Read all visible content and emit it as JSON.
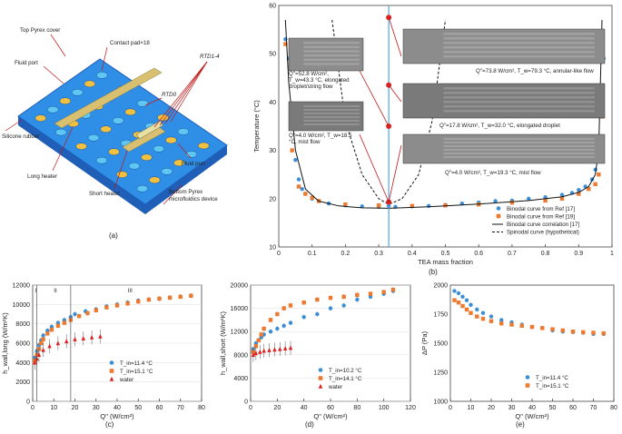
{
  "diagram": {
    "labels": {
      "top_cover": "Top Pyrex cover",
      "contact_pad": "Contact pad×18",
      "fluid_port_top": "Fluid port",
      "rtd0": "RTD0",
      "rtd14": "RTD1-4",
      "silicone": "Silicone rubber",
      "long_heater": "Long heater",
      "short_heater": "Short heater",
      "fluid_port_bottom": "Fluid port",
      "bottom_cover": "Bottom Pyrex",
      "device": "microfluidics device"
    },
    "colors": {
      "top": "#2f8fe6",
      "side": "#1f5fb8",
      "pad": "#f0c040",
      "hole": "#5ec6f2",
      "heater": "#d8c070"
    }
  },
  "panel_labels": {
    "a": "(a)",
    "b": "(b)",
    "c": "(c)",
    "d": "(d)",
    "e": "(e)"
  },
  "chart_data": [
    {
      "id": "b",
      "type": "scatter",
      "xlabel": "TEA mass fraction",
      "ylabel": "Temperature (°C)",
      "xlim": [
        0,
        1
      ],
      "ylim": [
        10,
        60
      ],
      "xticks": [
        0,
        0.1,
        0.2,
        0.3,
        0.4,
        0.5,
        0.6,
        0.7,
        0.8,
        0.9,
        1
      ],
      "xtick_labels": [
        "0",
        "0.1",
        "0.2",
        "0.3",
        "0.4",
        "0.5",
        "0.6",
        "0.7",
        "0.8",
        "0.9",
        "1"
      ],
      "yticks": [
        10,
        20,
        30,
        40,
        50,
        60
      ],
      "vline_x": 0.33,
      "series": [
        {
          "name": "Binodal curve from Ref [17]",
          "marker": "circle",
          "color": "#3a8fd6",
          "x": [
            0.02,
            0.03,
            0.04,
            0.05,
            0.06,
            0.07,
            0.08,
            0.1,
            0.12,
            0.15,
            0.2,
            0.25,
            0.3,
            0.33,
            0.35,
            0.4,
            0.45,
            0.5,
            0.55,
            0.6,
            0.65,
            0.7,
            0.75,
            0.8,
            0.85,
            0.88,
            0.9,
            0.92,
            0.94,
            0.95,
            0.96,
            0.97,
            0.975
          ],
          "y": [
            53,
            49,
            37,
            28,
            24,
            22,
            21,
            20,
            19.5,
            19,
            18.6,
            18.4,
            18.3,
            18.5,
            18.3,
            18.4,
            18.5,
            18.7,
            19,
            19.2,
            19.5,
            19.6,
            20,
            20.3,
            20.8,
            21.2,
            21.8,
            22.5,
            24,
            26,
            30,
            40,
            49
          ]
        },
        {
          "name": "Binodal curve from Ref [19]",
          "marker": "square",
          "color": "#ee7a30",
          "x": [
            0.02,
            0.04,
            0.06,
            0.08,
            0.1,
            0.12,
            0.2,
            0.3,
            0.4,
            0.5,
            0.6,
            0.7,
            0.8,
            0.85,
            0.9,
            0.93,
            0.95,
            0.96,
            0.97
          ],
          "y": [
            52,
            30,
            22.5,
            21,
            20.2,
            19.5,
            18.8,
            18.6,
            18.5,
            18.6,
            18.8,
            19.2,
            19.6,
            20,
            21,
            22,
            23,
            25,
            37
          ]
        },
        {
          "name": "Binodal curve correlation [17]",
          "line": "solid",
          "color": "#111",
          "x": [
            0.02,
            0.03,
            0.05,
            0.08,
            0.12,
            0.18,
            0.25,
            0.33,
            0.45,
            0.6,
            0.75,
            0.85,
            0.9,
            0.93,
            0.95,
            0.96,
            0.97
          ],
          "y": [
            57,
            44,
            30,
            22,
            19.5,
            18.5,
            18.1,
            18.0,
            18.3,
            18.9,
            19.6,
            20.4,
            21.3,
            22.5,
            25,
            30,
            57
          ]
        },
        {
          "name": "Spinodal curve (hypothetical)",
          "line": "dashed",
          "color": "#111",
          "x": [
            0.16,
            0.2,
            0.25,
            0.3,
            0.33,
            0.37,
            0.42,
            0.46,
            0.5
          ],
          "y": [
            57,
            36,
            25,
            20,
            18.8,
            20,
            25,
            36,
            57
          ]
        }
      ],
      "red_points": {
        "x": [
          0.33,
          0.33,
          0.33,
          0.33
        ],
        "y": [
          57.5,
          43.5,
          35,
          19.3
        ]
      },
      "annotations": [
        "Q\"=52.8 W/cm², T_w=43.3 °C, elongated droplet/string flow",
        "Q\"=4.0 W/cm², T_w=18.5 °C, mist flow",
        "Q\"=73.8 W/cm², T_w=79.3 °C, annular-like flow",
        "Q\"=17.8 W/cm², T_w=32.0 °C, elongated droplet",
        "Q\"=4.0 W/cm², T_w=19.3 °C, mist flow"
      ]
    },
    {
      "id": "c",
      "type": "scatter",
      "xlabel": "Q\" (W/cm²)",
      "ylabel": "h_wall,long (W/m²K)",
      "xlim": [
        0,
        80
      ],
      "ylim": [
        0,
        12000
      ],
      "xticks": [
        0,
        10,
        20,
        30,
        40,
        50,
        60,
        70,
        80
      ],
      "yticks": [
        0,
        2000,
        4000,
        6000,
        8000,
        10000,
        12000
      ],
      "regions": [
        "I",
        "II",
        "III"
      ],
      "region_x": [
        2,
        18
      ],
      "series": [
        {
          "name": "T_in=11.4 °C",
          "marker": "circle",
          "color": "#3a8fd6",
          "x": [
            1,
            2,
            3,
            4,
            5,
            7,
            9,
            12,
            15,
            18,
            20,
            25,
            30,
            35,
            40,
            45,
            50,
            55,
            60,
            65,
            70,
            75
          ],
          "y": [
            4500,
            5200,
            5800,
            6300,
            6800,
            7300,
            7700,
            8100,
            8400,
            8700,
            9000,
            9300,
            9500,
            9800,
            10000,
            10200,
            10400,
            10500,
            10600,
            10700,
            10800,
            10900
          ]
        },
        {
          "name": "T_in=15.1 °C",
          "marker": "square",
          "color": "#ee7a30",
          "x": [
            1,
            2,
            3,
            4,
            5,
            7,
            9,
            12,
            15,
            18,
            22,
            26,
            30,
            35,
            40,
            45,
            50,
            55,
            60,
            65,
            70,
            75
          ],
          "y": [
            4200,
            4800,
            5400,
            6000,
            6400,
            7000,
            7400,
            7800,
            8100,
            8400,
            8800,
            9100,
            9400,
            9700,
            9900,
            10100,
            10300,
            10500,
            10600,
            10700,
            10800,
            10900
          ]
        },
        {
          "name": "water",
          "marker": "triangle",
          "color": "#d22",
          "x": [
            1,
            2,
            3,
            5,
            8,
            12,
            16,
            20,
            24,
            28,
            32
          ],
          "y": [
            4000,
            4400,
            4800,
            5300,
            5700,
            6000,
            6200,
            6400,
            6500,
            6600,
            6700
          ]
        }
      ]
    },
    {
      "id": "d",
      "type": "scatter",
      "xlabel": "Q\" (W/cm²)",
      "ylabel": "h_wall,short (W/m²K)",
      "xlim": [
        0,
        120
      ],
      "ylim": [
        0,
        20000
      ],
      "xticks": [
        0,
        20,
        40,
        60,
        80,
        100,
        120
      ],
      "yticks": [
        0,
        4000,
        8000,
        12000,
        16000,
        20000
      ],
      "series": [
        {
          "name": "T_in=10.2 °C",
          "marker": "circle",
          "color": "#3a8fd6",
          "x": [
            2,
            4,
            6,
            8,
            10,
            15,
            20,
            25,
            30,
            40,
            50,
            60,
            70,
            80,
            90,
            100,
            107
          ],
          "y": [
            9000,
            10000,
            10500,
            11000,
            11500,
            12000,
            12500,
            13000,
            13500,
            14500,
            15000,
            16000,
            16500,
            17500,
            18000,
            18500,
            19000
          ]
        },
        {
          "name": "T_in=14.1 °C",
          "marker": "square",
          "color": "#ee7a30",
          "x": [
            2,
            4,
            6,
            8,
            10,
            15,
            20,
            25,
            30,
            40,
            50,
            60,
            70,
            80,
            90,
            100,
            107
          ],
          "y": [
            8500,
            9500,
            10500,
            11500,
            12500,
            14000,
            15000,
            16000,
            16500,
            17000,
            17500,
            17800,
            18000,
            18300,
            18500,
            18800,
            19200
          ]
        },
        {
          "name": "water",
          "marker": "triangle",
          "color": "#d22",
          "x": [
            2,
            4,
            7,
            10,
            14,
            18,
            22,
            26,
            30
          ],
          "y": [
            8000,
            8300,
            8500,
            8700,
            8800,
            8900,
            9000,
            9100,
            9200
          ]
        }
      ]
    },
    {
      "id": "e",
      "type": "scatter",
      "xlabel": "Q\" (W/cm²)",
      "ylabel": "ΔP (Pa)",
      "xlim": [
        0,
        80
      ],
      "ylim": [
        1000,
        2000
      ],
      "xticks": [
        0,
        10,
        20,
        30,
        40,
        50,
        60,
        70,
        80
      ],
      "yticks": [
        1000,
        1250,
        1500,
        1750,
        2000
      ],
      "series": [
        {
          "name": "T_in=11.4 °C",
          "marker": "circle",
          "color": "#3a8fd6",
          "x": [
            2,
            4,
            6,
            8,
            10,
            13,
            16,
            20,
            25,
            30,
            35,
            40,
            45,
            50,
            55,
            60,
            65,
            70,
            75
          ],
          "y": [
            1950,
            1930,
            1900,
            1870,
            1830,
            1790,
            1760,
            1730,
            1700,
            1680,
            1660,
            1640,
            1630,
            1610,
            1600,
            1595,
            1590,
            1580,
            1580
          ]
        },
        {
          "name": "T_in=15.1 °C",
          "marker": "square",
          "color": "#ee7a30",
          "x": [
            2,
            4,
            6,
            8,
            10,
            13,
            16,
            20,
            25,
            30,
            35,
            40,
            45,
            50,
            55,
            60,
            65,
            70,
            75
          ],
          "y": [
            1870,
            1850,
            1820,
            1790,
            1760,
            1730,
            1710,
            1690,
            1670,
            1660,
            1650,
            1640,
            1630,
            1620,
            1610,
            1600,
            1595,
            1590,
            1585
          ]
        }
      ]
    }
  ]
}
